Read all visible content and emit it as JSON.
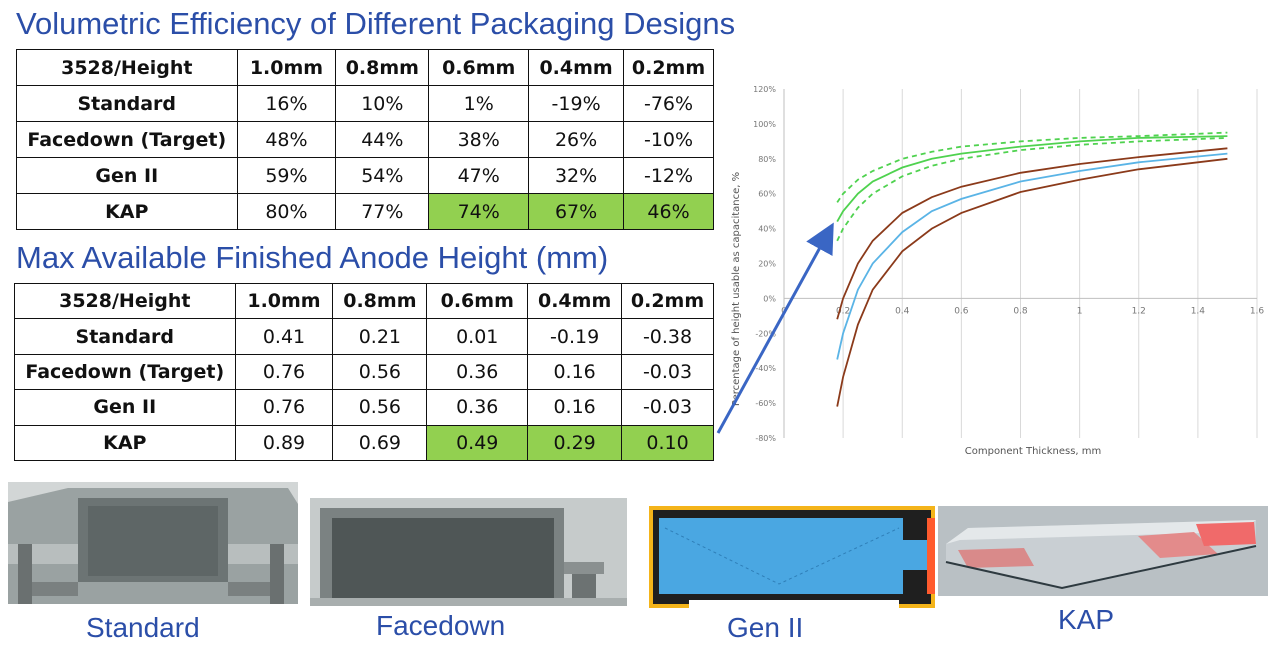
{
  "title1": "Volumetric Efficiency of Different Packaging Designs",
  "title2": "Max Available Finished Anode Height (mm)",
  "table1": {
    "header": [
      "3528/Height",
      "1.0mm",
      "0.8mm",
      "0.6mm",
      "0.4mm",
      "0.2mm"
    ],
    "rows": [
      {
        "label": "Standard",
        "cells": [
          "16%",
          "10%",
          "1%",
          "-19%",
          "-76%"
        ]
      },
      {
        "label": "Facedown (Target)",
        "cells": [
          "48%",
          "44%",
          "38%",
          "26%",
          "-10%"
        ]
      },
      {
        "label": "Gen II",
        "cells": [
          "59%",
          "54%",
          "47%",
          "32%",
          "-12%"
        ]
      },
      {
        "label": "KAP",
        "cells": [
          "80%",
          "77%",
          "74%",
          "67%",
          "46%"
        ]
      }
    ],
    "highlight_color": "#92d050"
  },
  "table2": {
    "header": [
      "3528/Height",
      "1.0mm",
      "0.8mm",
      "0.6mm",
      "0.4mm",
      "0.2mm"
    ],
    "rows": [
      {
        "label": "Standard",
        "cells": [
          "0.41",
          "0.21",
          "0.01",
          "-0.19",
          "-0.38"
        ]
      },
      {
        "label": "Facedown (Target)",
        "cells": [
          "0.76",
          "0.56",
          "0.36",
          "0.16",
          "-0.03"
        ]
      },
      {
        "label": "Gen II",
        "cells": [
          "0.76",
          "0.56",
          "0.36",
          "0.16",
          "-0.03"
        ]
      },
      {
        "label": "KAP",
        "cells": [
          "0.89",
          "0.69",
          "0.49",
          "0.29",
          "0.10"
        ]
      }
    ]
  },
  "chart_data": {
    "type": "line",
    "title": "",
    "xlabel": "Component Thickness, mm",
    "ylabel": "Percentage of height usable as capacitance, %",
    "xlim": [
      0,
      1.6
    ],
    "ylim": [
      -80,
      120
    ],
    "x_ticks": [
      "0",
      "0.2",
      "0.4",
      "0.6",
      "0.8",
      "1",
      "1.2",
      "1.4",
      "1.6"
    ],
    "y_ticks": [
      "-80%",
      "-60%",
      "-40%",
      "-20%",
      "0%",
      "20%",
      "40%",
      "60%",
      "80%",
      "100%",
      "120%"
    ],
    "grid": "vertical",
    "series": [
      {
        "color": "#4fd24f",
        "style": "solid",
        "x": [
          0.18,
          0.2,
          0.25,
          0.3,
          0.4,
          0.5,
          0.6,
          0.8,
          1.0,
          1.2,
          1.5
        ],
        "y": [
          44,
          50,
          60,
          67,
          75,
          80,
          83,
          87,
          90,
          92,
          93
        ]
      },
      {
        "color": "#4fd24f",
        "style": "dashed",
        "x": [
          0.18,
          0.2,
          0.25,
          0.3,
          0.4,
          0.5,
          0.6,
          0.8,
          1.0,
          1.2,
          1.5
        ],
        "y": [
          55,
          60,
          68,
          73,
          80,
          84,
          87,
          90,
          92,
          93,
          95
        ]
      },
      {
        "color": "#4fd24f",
        "style": "dashed",
        "x": [
          0.18,
          0.2,
          0.25,
          0.3,
          0.4,
          0.5,
          0.6,
          0.8,
          1.0,
          1.2,
          1.5
        ],
        "y": [
          33,
          40,
          52,
          60,
          70,
          76,
          80,
          85,
          88,
          90,
          92
        ]
      },
      {
        "color": "#8b3a1a",
        "style": "solid",
        "x": [
          0.18,
          0.2,
          0.25,
          0.3,
          0.4,
          0.5,
          0.6,
          0.8,
          1.0,
          1.2,
          1.5
        ],
        "y": [
          -12,
          0,
          20,
          33,
          49,
          58,
          64,
          72,
          77,
          81,
          86
        ]
      },
      {
        "color": "#5ab4e6",
        "style": "solid",
        "x": [
          0.18,
          0.2,
          0.25,
          0.3,
          0.4,
          0.5,
          0.6,
          0.8,
          1.0,
          1.2,
          1.5
        ],
        "y": [
          -35,
          -20,
          5,
          20,
          38,
          50,
          57,
          67,
          73,
          78,
          83
        ]
      },
      {
        "color": "#8b3a1a",
        "style": "solid",
        "x": [
          0.18,
          0.2,
          0.25,
          0.3,
          0.4,
          0.5,
          0.6,
          0.8,
          1.0,
          1.2,
          1.5
        ],
        "y": [
          -62,
          -45,
          -15,
          5,
          27,
          40,
          49,
          61,
          68,
          74,
          80
        ]
      }
    ]
  },
  "arrow_color": "#3a66c4",
  "captions": {
    "standard": "Standard",
    "facedown": "Facedown",
    "gen2": "Gen II",
    "kap": "KAP"
  }
}
